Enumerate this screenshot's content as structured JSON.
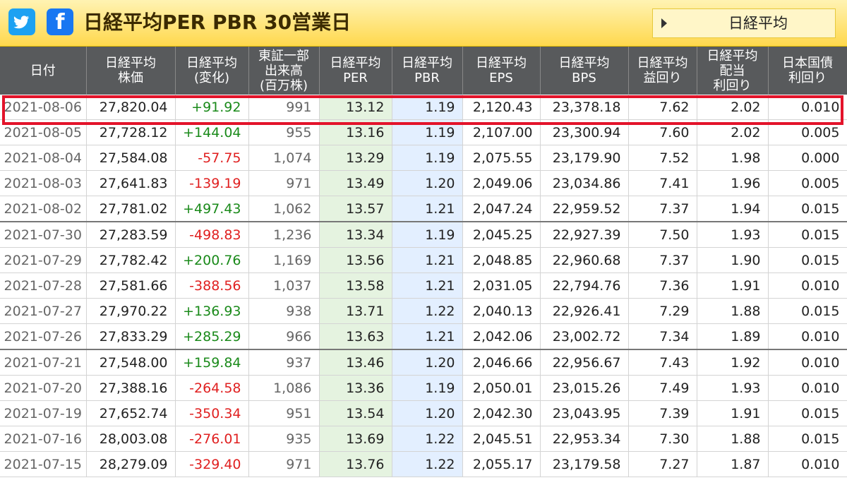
{
  "header": {
    "twitter_icon": "twitter-icon",
    "facebook_icon": "facebook-icon",
    "facebook_letter": "f",
    "title": "日経平均PER PBR 30営業日",
    "nav_button": "日経平均"
  },
  "columns": [
    [
      "日付"
    ],
    [
      "日経平均",
      "株価"
    ],
    [
      "日経平均",
      "(変化)"
    ],
    [
      "東証一部",
      "出来高",
      "(百万株)"
    ],
    [
      "日経平均",
      "PER"
    ],
    [
      "日経平均",
      "PBR"
    ],
    [
      "日経平均",
      "EPS"
    ],
    [
      "日経平均",
      "BPS"
    ],
    [
      "日経平均",
      "益回り"
    ],
    [
      "日経平均",
      "配当",
      "利回り"
    ],
    [
      "日本国債",
      "利回り"
    ]
  ],
  "rows": [
    [
      "2021-08-06",
      "27,820.04",
      "+91.92",
      "991",
      "13.12",
      "1.19",
      "2,120.43",
      "23,378.18",
      "7.62",
      "2.02",
      "0.010"
    ],
    [
      "2021-08-05",
      "27,728.12",
      "+144.04",
      "955",
      "13.16",
      "1.19",
      "2,107.00",
      "23,300.94",
      "7.60",
      "2.02",
      "0.005"
    ],
    [
      "2021-08-04",
      "27,584.08",
      "-57.75",
      "1,074",
      "13.29",
      "1.19",
      "2,075.55",
      "23,179.90",
      "7.52",
      "1.98",
      "0.000"
    ],
    [
      "2021-08-03",
      "27,641.83",
      "-139.19",
      "971",
      "13.49",
      "1.20",
      "2,049.06",
      "23,034.86",
      "7.41",
      "1.96",
      "0.005"
    ],
    [
      "2021-08-02",
      "27,781.02",
      "+497.43",
      "1,062",
      "13.57",
      "1.21",
      "2,047.24",
      "22,959.52",
      "7.37",
      "1.94",
      "0.015"
    ],
    [
      "2021-07-30",
      "27,283.59",
      "-498.83",
      "1,236",
      "13.34",
      "1.19",
      "2,045.25",
      "22,927.39",
      "7.50",
      "1.93",
      "0.015"
    ],
    [
      "2021-07-29",
      "27,782.42",
      "+200.76",
      "1,169",
      "13.56",
      "1.21",
      "2,048.85",
      "22,960.68",
      "7.37",
      "1.90",
      "0.015"
    ],
    [
      "2021-07-28",
      "27,581.66",
      "-388.56",
      "1,037",
      "13.58",
      "1.21",
      "2,031.05",
      "22,794.76",
      "7.36",
      "1.91",
      "0.010"
    ],
    [
      "2021-07-27",
      "27,970.22",
      "+136.93",
      "938",
      "13.71",
      "1.22",
      "2,040.13",
      "22,926.41",
      "7.29",
      "1.88",
      "0.015"
    ],
    [
      "2021-07-26",
      "27,833.29",
      "+285.29",
      "966",
      "13.63",
      "1.21",
      "2,042.06",
      "23,002.72",
      "7.34",
      "1.89",
      "0.010"
    ],
    [
      "2021-07-21",
      "27,548.00",
      "+159.84",
      "937",
      "13.46",
      "1.20",
      "2,046.66",
      "22,956.67",
      "7.43",
      "1.92",
      "0.010"
    ],
    [
      "2021-07-20",
      "27,388.16",
      "-264.58",
      "1,086",
      "13.36",
      "1.19",
      "2,050.01",
      "23,015.26",
      "7.49",
      "1.93",
      "0.010"
    ],
    [
      "2021-07-19",
      "27,652.74",
      "-350.34",
      "951",
      "13.54",
      "1.20",
      "2,042.30",
      "23,043.95",
      "7.39",
      "1.91",
      "0.015"
    ],
    [
      "2021-07-16",
      "28,003.08",
      "-276.01",
      "935",
      "13.69",
      "1.22",
      "2,045.51",
      "22,953.34",
      "7.30",
      "1.88",
      "0.015"
    ],
    [
      "2021-07-15",
      "28,279.09",
      "-329.40",
      "971",
      "13.76",
      "1.22",
      "2,055.17",
      "23,179.58",
      "7.27",
      "1.87",
      "0.010"
    ]
  ],
  "week_end_rows": [
    4,
    9
  ],
  "highlight_row": 0,
  "colors": {
    "positive": "#1a8a1a",
    "negative": "#e02020",
    "per_bg": "#e5f3e0",
    "pbr_bg": "#e3efff",
    "highlight": "#e3132a"
  }
}
